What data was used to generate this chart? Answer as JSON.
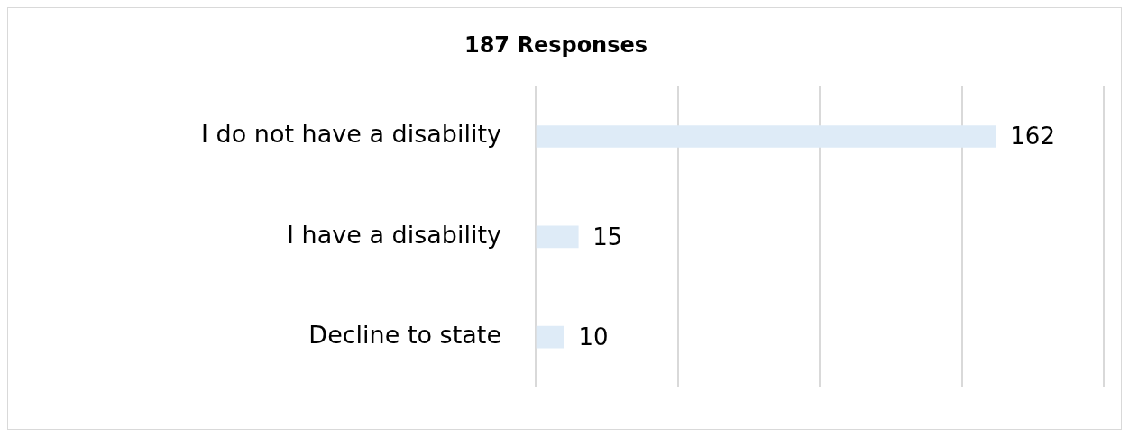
{
  "chart_data": {
    "type": "bar",
    "orientation": "horizontal",
    "title": "187 Responses",
    "categories": [
      "I do not have a disability",
      "I have a disability",
      "Decline to state"
    ],
    "values": [
      162,
      15,
      10
    ],
    "color": "#deebf7",
    "grid": "x",
    "tick_labels": "y",
    "data_labels": true,
    "legend": false
  }
}
